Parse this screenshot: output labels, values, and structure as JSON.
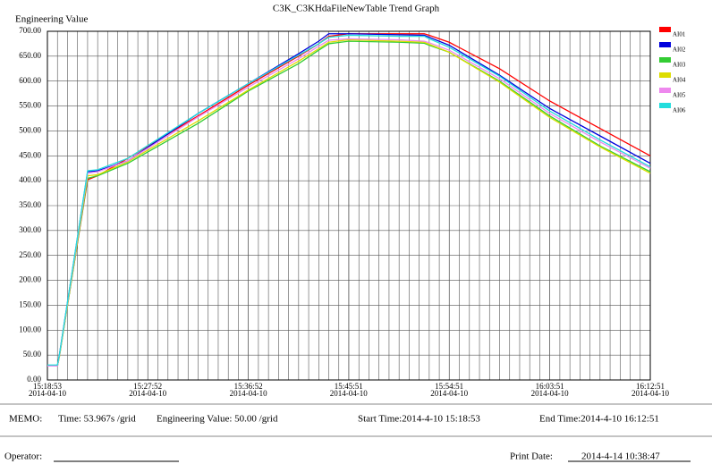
{
  "chart_data": {
    "type": "line",
    "title": "C3K_C3KHdaFileNewTable Trend Graph",
    "y_label": "Engineering Value",
    "x": [
      "15:18:53",
      "15:19:47",
      "15:19:58",
      "15:22:29",
      "15:23:23",
      "15:26:05",
      "15:32:22",
      "15:36:52",
      "15:41:22",
      "15:43:10",
      "15:44:04",
      "15:45:51",
      "15:50:22",
      "15:52:37",
      "15:53:04",
      "15:54:51",
      "15:59:21",
      "16:03:51",
      "16:08:21",
      "16:12:51"
    ],
    "series": [
      {
        "name": "AI01",
        "color": "#ff0000",
        "values": [
          28,
          28,
          50,
          402,
          410,
          445,
          530,
          592,
          650,
          675,
          690,
          695,
          695,
          695,
          692,
          678,
          625,
          560,
          505,
          450
        ]
      },
      {
        "name": "AI02",
        "color": "#0000dd",
        "values": [
          28,
          28,
          52,
          418,
          420,
          440,
          535,
          595,
          655,
          680,
          695,
          695,
          693,
          692,
          688,
          672,
          612,
          545,
          490,
          435
        ]
      },
      {
        "name": "AI03",
        "color": "#33cc33",
        "values": [
          28,
          28,
          48,
          405,
          410,
          435,
          515,
          580,
          635,
          662,
          675,
          680,
          678,
          676,
          672,
          658,
          600,
          530,
          470,
          418
        ]
      },
      {
        "name": "AI04",
        "color": "#dddd00",
        "values": [
          28,
          28,
          48,
          410,
          412,
          438,
          520,
          582,
          640,
          665,
          678,
          683,
          680,
          678,
          674,
          658,
          598,
          527,
          468,
          415
        ]
      },
      {
        "name": "AI05",
        "color": "#ee88ee",
        "values": [
          28,
          28,
          50,
          415,
          418,
          440,
          528,
          588,
          645,
          670,
          682,
          685,
          683,
          680,
          677,
          662,
          605,
          535,
          478,
          425
        ]
      },
      {
        "name": "AI06",
        "color": "#22dddd",
        "values": [
          30,
          30,
          52,
          420,
          422,
          445,
          535,
          595,
          652,
          675,
          688,
          692,
          690,
          690,
          685,
          668,
          610,
          540,
          482,
          428
        ]
      }
    ],
    "xlim": [
      "15:18:53",
      "16:12:51"
    ],
    "xticks": [
      "15:18:53",
      "15:27:52",
      "15:36:52",
      "15:45:51",
      "15:54:51",
      "16:03:51",
      "16:12:51"
    ],
    "xtick_dates": [
      "2014-04-10",
      "2014-04-10",
      "2014-04-10",
      "2014-04-10",
      "2014-04-10",
      "2014-04-10",
      "2014-04-10"
    ],
    "ylim": [
      0,
      700
    ],
    "yticks": [
      {
        "value": 0,
        "label": "0.00"
      },
      {
        "value": 50,
        "label": "50.00"
      },
      {
        "value": 100,
        "label": "100.00"
      },
      {
        "value": 150,
        "label": "150.00"
      },
      {
        "value": 200,
        "label": "200.00"
      },
      {
        "value": 250,
        "label": "250.00"
      },
      {
        "value": 300,
        "label": "300.00"
      },
      {
        "value": 350,
        "label": "350.00"
      },
      {
        "value": 400,
        "label": "400.00"
      },
      {
        "value": 450,
        "label": "450.00"
      },
      {
        "value": 500,
        "label": "500.00"
      },
      {
        "value": 550,
        "label": "550.00"
      },
      {
        "value": 600,
        "label": "600.00"
      },
      {
        "value": 650,
        "label": "650.00"
      },
      {
        "value": 700,
        "label": "700.00"
      }
    ],
    "grid": true
  },
  "memo": {
    "label": "MEMO:",
    "time_grid": "Time:  53.967s /grid",
    "value_grid": "Engineering Value: 50.00 /grid",
    "start": "Start Time:2014-4-10 15:18:53",
    "end": "End Time:2014-4-10 16:12:51"
  },
  "footer": {
    "operator": "Operator:",
    "print_label": "Print Date:",
    "print_date": "2014-4-14 10:38:47"
  }
}
